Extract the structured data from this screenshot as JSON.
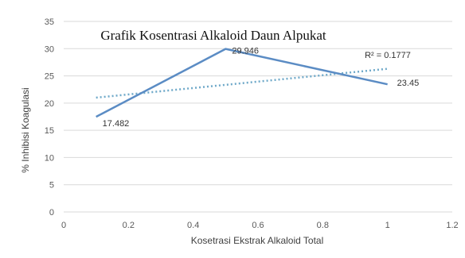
{
  "chart_data": {
    "type": "line",
    "title": "Grafik Kosentrasi Alkaloid Daun Alpukat",
    "xlabel": "Kosetrasi Ekstrak Alkaloid Total",
    "ylabel": "% Inhibisi Koagulasi",
    "xlim": [
      0,
      1.2
    ],
    "ylim": [
      0,
      35
    ],
    "x_ticks": [
      "0",
      "0.2",
      "0.4",
      "0.6",
      "0.8",
      "1",
      "1.2"
    ],
    "y_ticks": [
      "0",
      "5",
      "10",
      "15",
      "20",
      "25",
      "30",
      "35"
    ],
    "grid": "horizontal",
    "series": [
      {
        "points": [
          {
            "x": 0.1,
            "y": 17.482,
            "label": "17.482"
          },
          {
            "x": 0.5,
            "y": 29.946,
            "label": "29.946"
          },
          {
            "x": 1.0,
            "y": 23.45,
            "label": "23.45"
          }
        ],
        "color": "#5b8cc4"
      }
    ],
    "trendline": {
      "type": "linear",
      "x_start": 0.1,
      "y_start": 21.0,
      "x_end": 1.0,
      "y_end": 26.3,
      "color": "#6fa9c9",
      "r2_label": "R² = 0.1777"
    }
  }
}
